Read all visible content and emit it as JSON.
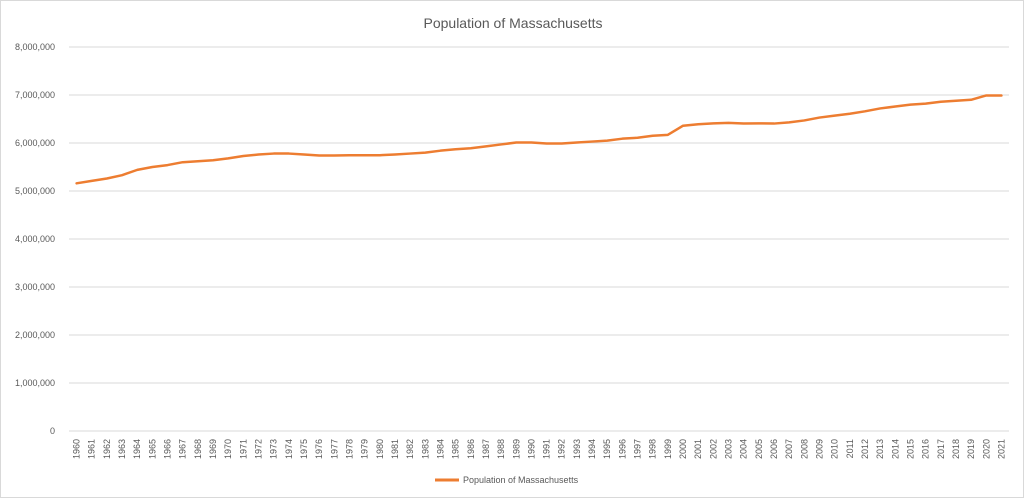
{
  "chart_data": {
    "type": "line",
    "title": "Population of Massachusetts",
    "xlabel": "",
    "ylabel": "",
    "ylim": [
      0,
      8000000
    ],
    "yticks": [
      0,
      1000000,
      2000000,
      3000000,
      4000000,
      5000000,
      6000000,
      7000000,
      8000000
    ],
    "ytick_labels": [
      "0",
      "1,000,000",
      "2,000,000",
      "3,000,000",
      "4,000,000",
      "5,000,000",
      "6,000,000",
      "7,000,000",
      "8,000,000"
    ],
    "grid": true,
    "legend_position": "bottom",
    "x": [
      "1960",
      "1961",
      "1962",
      "1963",
      "1964",
      "1965",
      "1966",
      "1967",
      "1968",
      "1969",
      "1970",
      "1971",
      "1972",
      "1973",
      "1974",
      "1975",
      "1976",
      "1977",
      "1978",
      "1979",
      "1980",
      "1981",
      "1982",
      "1983",
      "1984",
      "1985",
      "1986",
      "1987",
      "1988",
      "1989",
      "1990",
      "1991",
      "1992",
      "1993",
      "1994",
      "1995",
      "1996",
      "1997",
      "1998",
      "1999",
      "2000",
      "2001",
      "2002",
      "2003",
      "2004",
      "2005",
      "2006",
      "2007",
      "2008",
      "2009",
      "2010",
      "2011",
      "2012",
      "2013",
      "2014",
      "2015",
      "2016",
      "2017",
      "2018",
      "2019",
      "2020",
      "2021"
    ],
    "series": [
      {
        "name": "Population of Massachusetts",
        "color": "#ed7d31",
        "values": [
          5160000,
          5210000,
          5260000,
          5330000,
          5440000,
          5500000,
          5540000,
          5600000,
          5620000,
          5640000,
          5680000,
          5730000,
          5760000,
          5780000,
          5780000,
          5760000,
          5740000,
          5740000,
          5745000,
          5745000,
          5745000,
          5760000,
          5780000,
          5800000,
          5840000,
          5870000,
          5890000,
          5930000,
          5970000,
          6010000,
          6010000,
          5990000,
          5990000,
          6010000,
          6030000,
          6050000,
          6090000,
          6110000,
          6150000,
          6170000,
          6360000,
          6390000,
          6410000,
          6420000,
          6405000,
          6410000,
          6405000,
          6430000,
          6470000,
          6530000,
          6570000,
          6610000,
          6660000,
          6720000,
          6760000,
          6800000,
          6820000,
          6860000,
          6880000,
          6900000,
          6990000,
          6990000
        ]
      }
    ]
  }
}
